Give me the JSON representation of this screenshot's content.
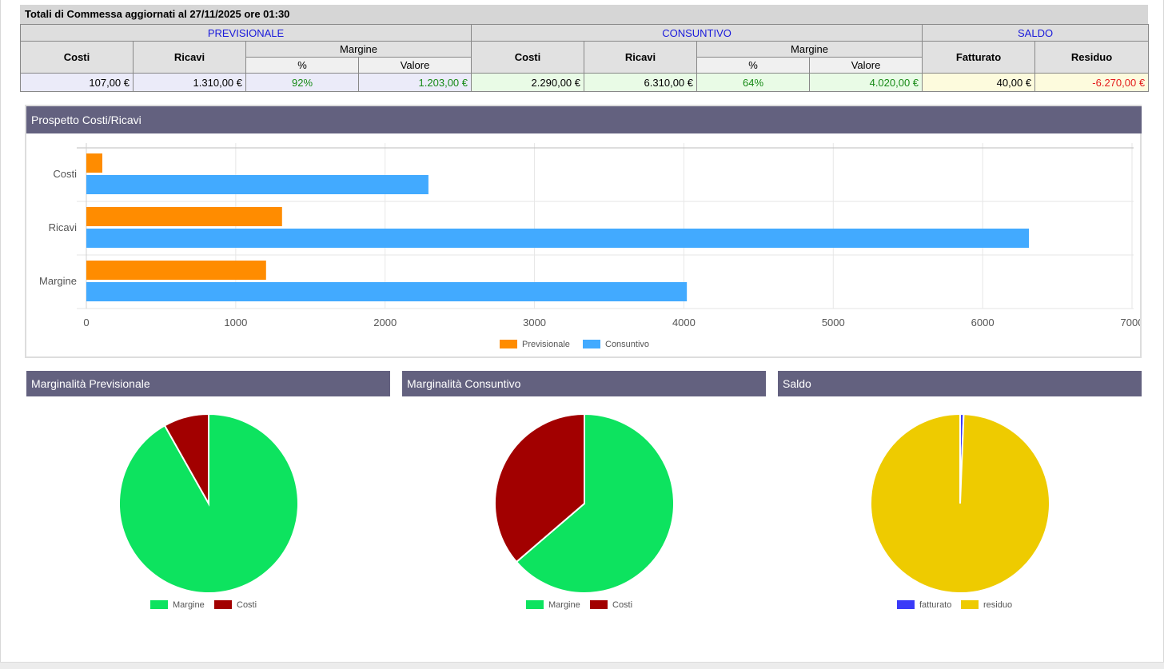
{
  "totals": {
    "title": "Totali di Commessa aggiornati al 27/11/2025 ore 01:30",
    "sections": {
      "prev": "PREVISIONALE",
      "cons": "CONSUNTIVO",
      "saldo": "SALDO"
    },
    "headers": {
      "costi": "Costi",
      "ricavi": "Ricavi",
      "margine": "Margine",
      "pct": "%",
      "valore": "Valore",
      "fatturato": "Fatturato",
      "residuo": "Residuo"
    },
    "values": {
      "prev_costi": "107,00 €",
      "prev_ricavi": "1.310,00 €",
      "prev_pct": "92%",
      "prev_valore": "1.203,00 €",
      "cons_costi": "2.290,00 €",
      "cons_ricavi": "6.310,00 €",
      "cons_pct": "64%",
      "cons_valore": "4.020,00 €",
      "fatturato": "40,00 €",
      "residuo": "-6.270,00 €"
    }
  },
  "panels": {
    "bar_title": "Prospetto Costi/Ricavi",
    "pie_prev_title": "Marginalità Previsionale",
    "pie_cons_title": "Marginalità Consuntivo",
    "pie_saldo_title": "Saldo"
  },
  "colors": {
    "previsionale": "#ff8c00",
    "consuntivo": "#42aaff",
    "margine": "#0de35f",
    "costi": "#a20000",
    "fatturato": "#3a3af8",
    "residuo": "#eecb00",
    "panel_header": "#63617f"
  },
  "chart_data": [
    {
      "type": "bar",
      "orientation": "horizontal",
      "categories": [
        "Costi",
        "Ricavi",
        "Margine"
      ],
      "series": [
        {
          "name": "Previsionale",
          "values": [
            107,
            1310,
            1203
          ]
        },
        {
          "name": "Consuntivo",
          "values": [
            2290,
            6310,
            4020
          ]
        }
      ],
      "xlim": [
        0,
        7000
      ],
      "ticks": [
        "0",
        "1000",
        "2000",
        "3000",
        "4000",
        "5000",
        "6000",
        "7000"
      ],
      "grid": true,
      "legend": "bottom"
    },
    {
      "type": "pie",
      "slices": [
        {
          "name": "Margine",
          "value": 1203
        },
        {
          "name": "Costi",
          "value": 107
        }
      ],
      "legend": "bottom"
    },
    {
      "type": "pie",
      "slices": [
        {
          "name": "Margine",
          "value": 4020
        },
        {
          "name": "Costi",
          "value": 2290
        }
      ],
      "legend": "bottom"
    },
    {
      "type": "pie",
      "slices": [
        {
          "name": "fatturato",
          "value": 40
        },
        {
          "name": "residuo",
          "value": 6270
        }
      ],
      "legend": "bottom"
    }
  ]
}
